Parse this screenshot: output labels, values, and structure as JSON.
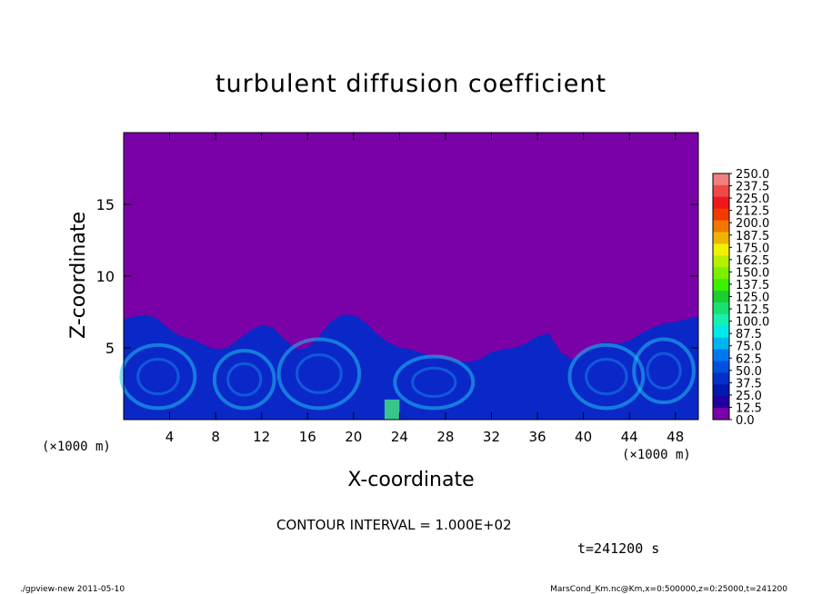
{
  "chart_data": {
    "type": "heatmap",
    "title": "turbulent diffusion coefficient",
    "xlabel": "X-coordinate",
    "ylabel": "Z-coordinate",
    "x_unit_left": "(×1000 m)",
    "x_unit_right": "(×1000 m)",
    "xlim": [
      0,
      50
    ],
    "ylim": [
      0,
      20
    ],
    "xticks": [
      "4",
      "8",
      "12",
      "16",
      "20",
      "24",
      "28",
      "32",
      "36",
      "40",
      "44",
      "48"
    ],
    "xtick_values": [
      4,
      8,
      12,
      16,
      20,
      24,
      28,
      32,
      36,
      40,
      44,
      48
    ],
    "yticks": [
      "5",
      "10",
      "15"
    ],
    "ytick_values": [
      5,
      10,
      15
    ],
    "contour_interval_text": "CONTOUR INTERVAL = 1.000E+02",
    "time_label": "t=241200 s",
    "colorbar": {
      "labels": [
        "250.0",
        "237.5",
        "225.0",
        "212.5",
        "200.0",
        "187.5",
        "175.0",
        "162.5",
        "150.0",
        "137.5",
        "125.0",
        "112.5",
        "100.0",
        "87.5",
        "75.0",
        "62.5",
        "50.0",
        "37.5",
        "25.0",
        "12.5",
        "0.0"
      ],
      "colors": [
        "#f08080",
        "#f04848",
        "#f01818",
        "#f03c00",
        "#f07800",
        "#f0b400",
        "#f0f000",
        "#b4f000",
        "#78f000",
        "#3cf000",
        "#18d030",
        "#18e070",
        "#18f0b0",
        "#00e8e8",
        "#00b4f0",
        "#0078f0",
        "#0050e0",
        "#0030c8",
        "#0018b0",
        "#2000a0",
        "#7a00a8"
      ]
    },
    "background_color": "#7a00a8",
    "field_color": "#0a28c8",
    "highlight_color": "#20c0f0",
    "wave_top_profile": {
      "x": [
        0,
        1,
        2,
        3,
        4,
        5,
        6,
        7,
        8,
        9,
        10,
        11,
        12,
        13,
        14,
        15,
        16,
        17,
        18,
        19,
        20,
        21,
        22,
        23,
        24,
        25,
        26,
        27,
        28,
        29,
        30,
        31,
        32,
        33,
        34,
        35,
        36,
        37,
        38,
        39,
        40,
        41,
        42,
        43,
        44,
        45,
        46,
        47,
        48,
        49,
        50
      ],
      "z": [
        7,
        7.2,
        7.3,
        7.0,
        6.3,
        5.8,
        5.6,
        5.2,
        4.9,
        5.0,
        5.6,
        6.2,
        6.6,
        6.4,
        5.6,
        4.9,
        5.0,
        5.8,
        6.8,
        7.3,
        7.3,
        6.8,
        6.0,
        5.4,
        5.0,
        4.9,
        4.6,
        4.4,
        4.2,
        4.1,
        4.0,
        4.2,
        4.7,
        4.9,
        5.0,
        5.3,
        5.8,
        6.0,
        4.7,
        4.2,
        4.6,
        5.2,
        5.4,
        5.3,
        5.5,
        6.0,
        6.4,
        6.7,
        6.8,
        7.0,
        7.2
      ]
    }
  },
  "footer": {
    "left": "./gpview-new   2011-05-10",
    "right": "MarsCond_Km.nc@Km,x=0:500000,z=0:25000,t=241200"
  }
}
